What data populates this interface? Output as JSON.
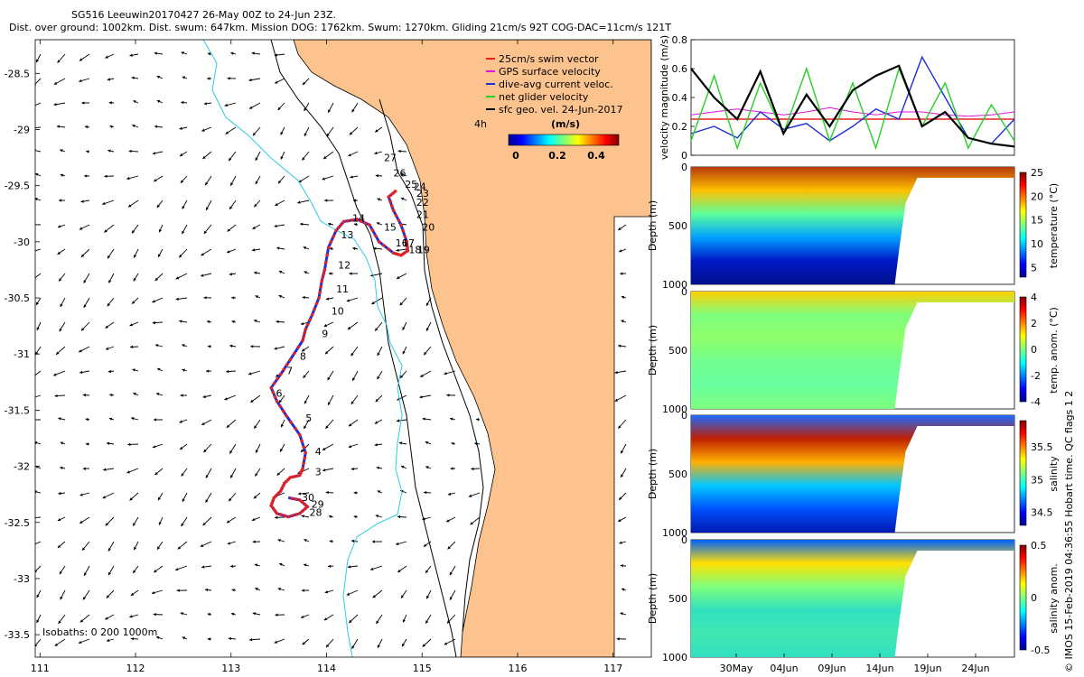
{
  "title": {
    "line1": "SG516 Leeuwin20170427 26-May 00Z to 24-Jun 23Z.",
    "line2": "Dist. over ground: 1002km. Dist. swum: 647km. Mission DOG: 1762km. Swum: 1270km. Gliding 21cm/s 92T COG-DAC=11cm/s 121T"
  },
  "copyright": "© IMOS 15-Feb-2019 04:36:55 Hobart time. QC flags 1  2",
  "colors": {
    "land": "#fcc38f",
    "track": "#e8211e",
    "gps": "#e010e0",
    "dac": "#1d2fd6",
    "net": "#25d025",
    "geo": "#000000",
    "isobath": "#2ecbe8"
  },
  "chart_data": [
    {
      "type": "map",
      "name": "glider track map",
      "x_ticks": [
        "111",
        "112",
        "113",
        "114",
        "115",
        "116",
        "117"
      ],
      "y_ticks": [
        "-28.5",
        "-29",
        "-29.5",
        "-30",
        "-30.5",
        "-31",
        "-31.5",
        "-32",
        "-32.5",
        "-33",
        "-33.5"
      ],
      "xlim": [
        110.95,
        117.4
      ],
      "ylim": [
        -33.7,
        -28.2
      ],
      "legend": [
        "25cm/s swim vector",
        "GPS surface velocity",
        "dive-avg current veloc.",
        "net glider velocity",
        "sfc geo. vel. 24-Jun-2017"
      ],
      "legend_note": "4h",
      "colorbar_label": "(m/s)",
      "colorbar_ticks": [
        "0",
        "0.2",
        "0.4"
      ],
      "colorbar_range": [
        0,
        0.5
      ],
      "isobaths_label": "Isobaths: 0   200  1000m",
      "track_points": [
        [
          114.72,
          -29.55
        ],
        [
          114.65,
          -29.6
        ],
        [
          114.7,
          -29.72
        ],
        [
          114.78,
          -29.85
        ],
        [
          114.84,
          -30.0
        ],
        [
          114.85,
          -30.08
        ],
        [
          114.78,
          -30.12
        ],
        [
          114.7,
          -30.1
        ],
        [
          114.55,
          -30.0
        ],
        [
          114.45,
          -29.85
        ],
        [
          114.32,
          -29.8
        ],
        [
          114.18,
          -29.82
        ],
        [
          114.1,
          -29.9
        ],
        [
          114.02,
          -30.05
        ],
        [
          113.98,
          -30.25
        ],
        [
          113.95,
          -30.35
        ],
        [
          113.92,
          -30.5
        ],
        [
          113.85,
          -30.65
        ],
        [
          113.78,
          -30.78
        ],
        [
          113.75,
          -30.88
        ],
        [
          113.62,
          -31.05
        ],
        [
          113.52,
          -31.18
        ],
        [
          113.42,
          -31.3
        ],
        [
          113.48,
          -31.42
        ],
        [
          113.58,
          -31.55
        ],
        [
          113.72,
          -31.72
        ],
        [
          113.78,
          -31.88
        ],
        [
          113.75,
          -32.02
        ],
        [
          113.72,
          -32.08
        ],
        [
          113.62,
          -32.1
        ],
        [
          113.56,
          -32.15
        ],
        [
          113.52,
          -32.22
        ],
        [
          113.45,
          -32.28
        ],
        [
          113.42,
          -32.35
        ],
        [
          113.48,
          -32.42
        ],
        [
          113.6,
          -32.45
        ],
        [
          113.72,
          -32.42
        ],
        [
          113.8,
          -32.36
        ],
        [
          113.72,
          -32.3
        ],
        [
          113.6,
          -32.28
        ]
      ],
      "track_labels": [
        {
          "text": "3",
          "lon": 113.88,
          "lat": -32.08
        },
        {
          "text": "4",
          "lon": 113.88,
          "lat": -31.9
        },
        {
          "text": "5",
          "lon": 113.78,
          "lat": -31.6
        },
        {
          "text": "6",
          "lon": 113.47,
          "lat": -31.38
        },
        {
          "text": "7",
          "lon": 113.58,
          "lat": -31.18
        },
        {
          "text": "8",
          "lon": 113.72,
          "lat": -31.05
        },
        {
          "text": "9",
          "lon": 113.95,
          "lat": -30.85
        },
        {
          "text": "10",
          "lon": 114.05,
          "lat": -30.65
        },
        {
          "text": "11",
          "lon": 114.1,
          "lat": -30.45
        },
        {
          "text": "12",
          "lon": 114.12,
          "lat": -30.24
        },
        {
          "text": "13",
          "lon": 114.15,
          "lat": -29.97
        },
        {
          "text": "14",
          "lon": 114.27,
          "lat": -29.82
        },
        {
          "text": "15",
          "lon": 114.6,
          "lat": -29.9
        },
        {
          "text": "16",
          "lon": 114.72,
          "lat": -30.04
        },
        {
          "text": "17",
          "lon": 114.79,
          "lat": -30.04
        },
        {
          "text": "18",
          "lon": 114.86,
          "lat": -30.1
        },
        {
          "text": "19",
          "lon": 114.95,
          "lat": -30.1
        },
        {
          "text": "20",
          "lon": 115.0,
          "lat": -29.9
        },
        {
          "text": "21",
          "lon": 114.94,
          "lat": -29.79
        },
        {
          "text": "22",
          "lon": 114.94,
          "lat": -29.68
        },
        {
          "text": "23",
          "lon": 114.94,
          "lat": -29.6
        },
        {
          "text": "24",
          "lon": 114.91,
          "lat": -29.54
        },
        {
          "text": "25",
          "lon": 114.82,
          "lat": -29.52
        },
        {
          "text": "26",
          "lon": 114.7,
          "lat": -29.42
        },
        {
          "text": "27",
          "lon": 114.6,
          "lat": -29.28
        },
        {
          "text": "28",
          "lon": 113.82,
          "lat": -32.44
        },
        {
          "text": "29",
          "lon": 113.84,
          "lat": -32.37
        },
        {
          "text": "30",
          "lon": 113.74,
          "lat": -32.31
        }
      ]
    },
    {
      "type": "line",
      "name": "velocity magnitude",
      "ylabel": "velocity magnitude (m/s)",
      "ylim": [
        0,
        0.8
      ],
      "yticks": [
        "0",
        "0.2",
        "0.4",
        "0.6",
        "0.8"
      ],
      "x": [
        0,
        2,
        4,
        6,
        8,
        10,
        12,
        14,
        16,
        18,
        20,
        22,
        24,
        26,
        28
      ],
      "series": [
        {
          "name": "swim",
          "values": [
            0.25,
            0.25,
            0.25,
            0.25,
            0.25,
            0.25,
            0.25,
            0.25,
            0.25,
            0.25,
            0.25,
            0.25,
            0.25,
            0.25,
            0.25
          ]
        },
        {
          "name": "GPS surface",
          "values": [
            0.28,
            0.3,
            0.32,
            0.3,
            0.28,
            0.3,
            0.33,
            0.3,
            0.28,
            0.3,
            0.3,
            0.28,
            0.27,
            0.28,
            0.3
          ]
        },
        {
          "name": "dive-avg current",
          "values": [
            0.15,
            0.2,
            0.12,
            0.3,
            0.18,
            0.22,
            0.1,
            0.2,
            0.32,
            0.25,
            0.68,
            0.4,
            0.12,
            0.08,
            0.25
          ]
        },
        {
          "name": "net glider",
          "values": [
            0.1,
            0.55,
            0.05,
            0.5,
            0.15,
            0.6,
            0.1,
            0.5,
            0.05,
            0.6,
            0.2,
            0.5,
            0.05,
            0.35,
            0.1
          ]
        },
        {
          "name": "sfc geo",
          "values": [
            0.6,
            0.4,
            0.25,
            0.58,
            0.15,
            0.42,
            0.2,
            0.45,
            0.55,
            0.62,
            0.2,
            0.3,
            0.12,
            0.08,
            0.06
          ]
        }
      ]
    },
    {
      "type": "heatmap",
      "name": "temperature section",
      "ylabel": "Depth (m)",
      "yticks": [
        "0",
        "500",
        "1000"
      ],
      "colorbar_label": "temperature (°C)",
      "colorbar_ticks": [
        "5",
        "10",
        "15",
        "20",
        "25"
      ],
      "clim": [
        3,
        25
      ]
    },
    {
      "type": "heatmap",
      "name": "temperature anomaly section",
      "ylabel": "Depth (m)",
      "yticks": [
        "0",
        "500",
        "1000"
      ],
      "colorbar_label": "temp. anom. (°C)",
      "colorbar_ticks": [
        "-4",
        "-2",
        "0",
        "2",
        "4"
      ],
      "clim": [
        -4,
        4
      ]
    },
    {
      "type": "heatmap",
      "name": "salinity section",
      "ylabel": "Depth (m)",
      "yticks": [
        "0",
        "500",
        "1000"
      ],
      "colorbar_label": "salinity",
      "colorbar_ticks": [
        "34.5",
        "35",
        "35.5"
      ],
      "clim": [
        34.3,
        35.9
      ]
    },
    {
      "type": "heatmap",
      "name": "salinity anomaly section",
      "ylabel": "Depth (m)",
      "yticks": [
        "0",
        "500",
        "1000"
      ],
      "colorbar_label": "salinity anom.",
      "colorbar_ticks": [
        "-0.5",
        "0",
        "0.5"
      ],
      "clim": [
        -0.5,
        0.5
      ],
      "xticks": [
        "30May",
        "04Jun",
        "09Jun",
        "14Jun",
        "19Jun",
        "24Jun"
      ]
    }
  ]
}
